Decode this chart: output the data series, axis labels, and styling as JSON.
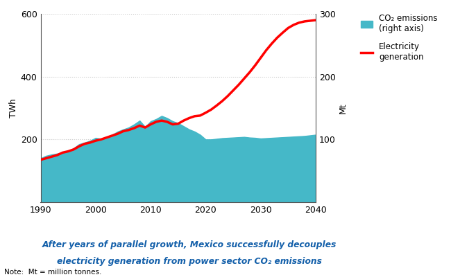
{
  "subtitle_line1": "After years of parallel growth, Mexico successfully decouples",
  "subtitle_line2": "electricity generation from power sector CO₂ emissions",
  "note": "Note:  Mt = million tonnes.",
  "ylabel_left": "TWh",
  "ylabel_right": "Mt",
  "legend_area_label": "CO₂ emissions\n(right axis)",
  "legend_line_label": "Electricity\ngeneration",
  "xlim": [
    1990,
    2040
  ],
  "ylim_left": [
    0,
    600
  ],
  "ylim_right": [
    0,
    300
  ],
  "yticks_left": [
    0,
    200,
    400,
    600
  ],
  "yticks_right": [
    0,
    100,
    200,
    300
  ],
  "xticks": [
    1990,
    2000,
    2010,
    2020,
    2030,
    2040
  ],
  "grid_color": "#c8c8c8",
  "area_color": "#45b8c8",
  "line_color": "#ff0000",
  "subtitle_color": "#1460aa",
  "area_years": [
    1990,
    1991,
    1992,
    1993,
    1994,
    1995,
    1996,
    1997,
    1998,
    1999,
    2000,
    2001,
    2002,
    2003,
    2004,
    2005,
    2006,
    2007,
    2008,
    2009,
    2010,
    2011,
    2012,
    2013,
    2014,
    2015,
    2016,
    2017,
    2018,
    2019,
    2020,
    2021,
    2022,
    2023,
    2024,
    2025,
    2026,
    2027,
    2028,
    2029,
    2030,
    2031,
    2032,
    2033,
    2034,
    2035,
    2036,
    2037,
    2038,
    2039,
    2040
  ],
  "area_values": [
    140,
    148,
    152,
    155,
    158,
    163,
    172,
    185,
    190,
    196,
    205,
    202,
    208,
    215,
    225,
    232,
    238,
    248,
    260,
    240,
    258,
    265,
    275,
    268,
    258,
    252,
    242,
    232,
    225,
    215,
    200,
    200,
    202,
    204,
    205,
    206,
    207,
    208,
    206,
    205,
    203,
    204,
    205,
    206,
    207,
    208,
    209,
    210,
    211,
    213,
    215
  ],
  "line_years": [
    1990,
    1991,
    1992,
    1993,
    1994,
    1995,
    1996,
    1997,
    1998,
    1999,
    2000,
    2001,
    2002,
    2003,
    2004,
    2005,
    2006,
    2007,
    2008,
    2009,
    2010,
    2011,
    2012,
    2013,
    2014,
    2015,
    2016,
    2017,
    2018,
    2019,
    2020,
    2021,
    2022,
    2023,
    2024,
    2025,
    2026,
    2027,
    2028,
    2029,
    2030,
    2031,
    2032,
    2033,
    2034,
    2035,
    2036,
    2037,
    2038,
    2039,
    2040
  ],
  "line_values": [
    135,
    140,
    145,
    150,
    158,
    162,
    168,
    178,
    186,
    190,
    196,
    200,
    206,
    212,
    218,
    226,
    230,
    236,
    244,
    238,
    248,
    256,
    260,
    256,
    248,
    250,
    260,
    268,
    274,
    276,
    285,
    295,
    308,
    322,
    338,
    356,
    374,
    394,
    414,
    436,
    460,
    484,
    505,
    524,
    540,
    555,
    565,
    572,
    576,
    578,
    580
  ]
}
